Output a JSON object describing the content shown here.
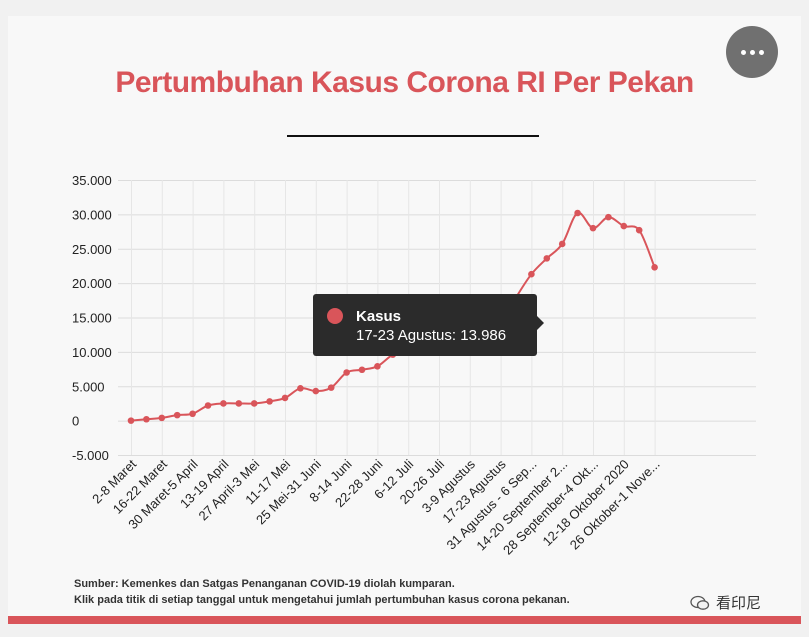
{
  "header": {
    "title": "Pertumbuhan Kasus Corona RI Per Pekan",
    "menu_icon": "more-horizontal-icon"
  },
  "tooltip": {
    "series": "Kasus",
    "detail": "17-23 Agustus: 13.986"
  },
  "footer": {
    "source_line1": "Sumber: Kemenkes dan Satgas Penanganan COVID-19 diolah kumparan.",
    "source_line2": "Klik pada titik di setiap tanggal untuk mengetahui jumlah pertumbuhan kasus corona pekanan.",
    "watermark": "看印尼"
  },
  "colors": {
    "accent": "#d9555a",
    "tooltip_bg": "#2b2b2b"
  },
  "chart_data": {
    "type": "line",
    "title": "Pertumbuhan Kasus Corona RI Per Pekan",
    "ylim": [
      -5000,
      35000
    ],
    "y_ticks": [
      "35.000",
      "30.000",
      "25.000",
      "20.000",
      "15.000",
      "10.000",
      "5.000",
      "0",
      "-5.000"
    ],
    "y_tick_values": [
      35000,
      30000,
      25000,
      20000,
      15000,
      10000,
      5000,
      0,
      -5000
    ],
    "x_tick_labels": [
      "2-8 Maret",
      "16-22 Maret",
      "30 Maret-5 April",
      "13-19 April",
      "27 April-3 Mei",
      "11-17 Mei",
      "25 Mei-31 Juni",
      "8-14 Juni",
      "22-28 Juni",
      "6-12 Juli",
      "20-26 Juli",
      "3-9 Agustus",
      "17-23 Agustus",
      "31 Agustus - 6 Sep...",
      "14-20 September 2...",
      "28 September-4 Okt...",
      "12-18 Oktober 2020",
      "26 Oktober-1 Nove..."
    ],
    "grid": true,
    "highlight_index": 24,
    "series": [
      {
        "name": "Kasus",
        "values": [
          0,
          200,
          400,
          800,
          1000,
          2200,
          2500,
          2500,
          2500,
          2800,
          3300,
          4700,
          4300,
          4800,
          7000,
          7400,
          7900,
          9600,
          10400,
          11500,
          12100,
          13000,
          13800,
          14200,
          13986,
          17900,
          21300,
          23600,
          25700,
          30200,
          28000,
          29600,
          28300,
          27700,
          22300
        ]
      }
    ]
  }
}
